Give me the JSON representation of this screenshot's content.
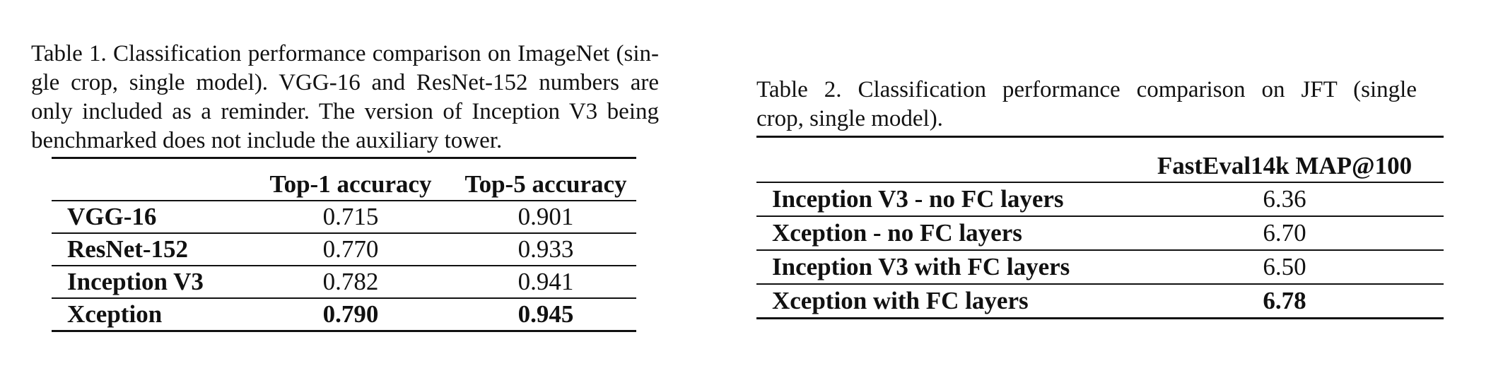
{
  "table1": {
    "caption_lines": [
      "Table 1. Classification performance comparison on ImageNet (sin-",
      "gle crop, single model).  VGG-16 and ResNet-152 numbers are",
      "only included as a reminder.  The version of Inception V3 being",
      "benchmarked does not include the auxiliary tower."
    ],
    "headers": [
      "",
      "Top-1 accuracy",
      "Top-5 accuracy"
    ],
    "rows": [
      {
        "model": "VGG-16",
        "top1": "0.715",
        "top5": "0.901",
        "bold": false
      },
      {
        "model": "ResNet-152",
        "top1": "0.770",
        "top5": "0.933",
        "bold": false
      },
      {
        "model": "Inception V3",
        "top1": "0.782",
        "top5": "0.941",
        "bold": false
      },
      {
        "model": "Xception",
        "top1": "0.790",
        "top5": "0.945",
        "bold": true
      }
    ]
  },
  "table2": {
    "caption_lines": [
      "Table 2. Classification performance comparison on JFT (single",
      "crop, single model)."
    ],
    "headers": [
      "",
      "FastEval14k MAP@100"
    ],
    "rows": [
      {
        "model": "Inception V3 - no FC layers",
        "map": "6.36",
        "bold": false
      },
      {
        "model": "Xception - no FC layers",
        "map": "6.70",
        "bold": false
      },
      {
        "model": "Inception V3 with FC layers",
        "map": "6.50",
        "bold": false
      },
      {
        "model": "Xception with FC layers",
        "map": "6.78",
        "bold": true
      }
    ]
  }
}
